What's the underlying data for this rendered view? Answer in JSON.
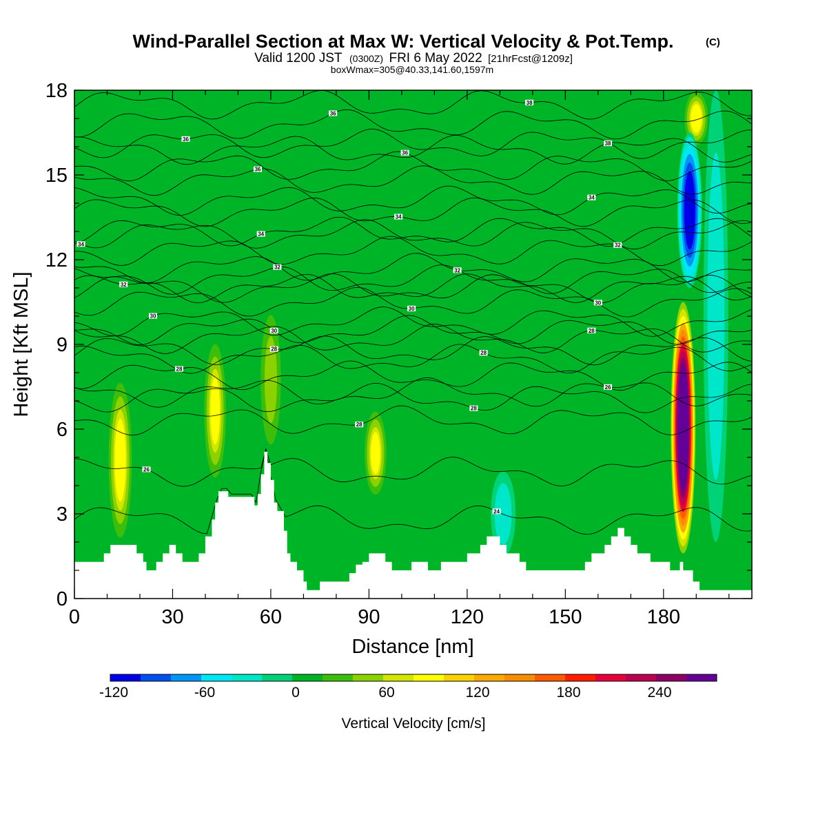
{
  "chart_data": {
    "type": "heatmap",
    "title": "Wind-Parallel Section at Max W: Vertical Velocity & Pot.Temp.",
    "title_mark": "(C)",
    "subtitle_main": "Valid 1200 JST",
    "subtitle_utc": "(0300Z)",
    "subtitle_date": "FRI 6 May 2022",
    "subtitle_fcst": "[21hrFcst@1209z]",
    "subtitle_box": "boxWmax=305@40.33,141.60,1597m",
    "xlabel": "Distance [nm]",
    "ylabel": "Height [Kft MSL]",
    "xlim": [
      0,
      207
    ],
    "ylim": [
      0,
      18
    ],
    "x_ticks": [
      "0",
      "30",
      "60",
      "90",
      "120",
      "150",
      "180"
    ],
    "y_ticks": [
      "0",
      "3",
      "6",
      "9",
      "12",
      "15",
      "18"
    ],
    "colorbar": {
      "label": "Vertical Velocity [cm/s]",
      "tick_labels": [
        "-120",
        "-60",
        "0",
        "60",
        "120",
        "180",
        "240"
      ],
      "colors": [
        "#0000e6",
        "#0050f0",
        "#0096f5",
        "#00e6f5",
        "#00e6c8",
        "#00d278",
        "#00b428",
        "#3cbe0a",
        "#8cd200",
        "#d2e600",
        "#ffff00",
        "#fad200",
        "#faaa00",
        "#fa8c00",
        "#ff5a00",
        "#ff1e00",
        "#e6003c",
        "#be0050",
        "#8c0064",
        "#640096"
      ],
      "levels": [
        -120,
        -100,
        -80,
        -60,
        -40,
        -20,
        0,
        20,
        40,
        60,
        80,
        100,
        120,
        140,
        160,
        180,
        200,
        220,
        240,
        260,
        280
      ]
    },
    "background_w": 0,
    "updraft_features": [
      {
        "x": 14,
        "z_bottom": 2.0,
        "z_top": 7.8,
        "w_max": 90
      },
      {
        "x": 43,
        "z_bottom": 4.0,
        "z_top": 9.3,
        "w_max": 80
      },
      {
        "x": 60,
        "z_bottom": 5.0,
        "z_top": 10.5,
        "w_max": 50
      },
      {
        "x": 92,
        "z_bottom": 3.5,
        "z_top": 6.8,
        "w_max": 80
      },
      {
        "x": 186,
        "z_bottom": 1.6,
        "z_top": 10.5,
        "w_max": 305
      },
      {
        "x": 190,
        "z_bottom": 16.0,
        "z_top": 18.0,
        "w_max": 90
      }
    ],
    "downdraft_features": [
      {
        "x": 188,
        "z_bottom": 11.0,
        "z_top": 16.5,
        "w_min": -120
      },
      {
        "x": 131,
        "z_bottom": 1.5,
        "z_top": 4.5,
        "w_min": -35
      },
      {
        "x": 196,
        "z_bottom": 2.0,
        "z_top": 18.0,
        "w_min": -40
      }
    ],
    "terrain": {
      "x": [
        0,
        7,
        9,
        11,
        17,
        19,
        21,
        22,
        25,
        27,
        29,
        31,
        33,
        36,
        38,
        40,
        42,
        43,
        44,
        47,
        53,
        55,
        56,
        57,
        58,
        59,
        60,
        61,
        62,
        64,
        65,
        66,
        68,
        70,
        71,
        73,
        75,
        77,
        80,
        82,
        84,
        86,
        88,
        90,
        92,
        95,
        97,
        100,
        103,
        106,
        108,
        110,
        112,
        115,
        118,
        120,
        122,
        124,
        126,
        128,
        130,
        132,
        134,
        136,
        138,
        140,
        142,
        145,
        150,
        152,
        154,
        156,
        158,
        160,
        162,
        164,
        166,
        168,
        170,
        172,
        174,
        176,
        178,
        180,
        182,
        184,
        185,
        186,
        188,
        189,
        190,
        191,
        192,
        193,
        195,
        200,
        207
      ],
      "z": [
        1.3,
        1.3,
        1.6,
        1.9,
        1.9,
        1.6,
        1.3,
        1.0,
        1.3,
        1.6,
        1.9,
        1.6,
        1.3,
        1.3,
        1.6,
        2.2,
        2.8,
        3.4,
        3.8,
        3.6,
        3.6,
        3.3,
        3.7,
        4.4,
        5.2,
        4.8,
        4.2,
        3.4,
        3.1,
        2.4,
        1.6,
        1.3,
        1.0,
        0.6,
        0.3,
        0.3,
        0.6,
        0.6,
        0.6,
        0.6,
        0.9,
        1.2,
        1.3,
        1.6,
        1.6,
        1.3,
        1.0,
        1.0,
        1.3,
        1.3,
        1.0,
        1.0,
        1.3,
        1.3,
        1.3,
        1.6,
        1.6,
        1.9,
        2.2,
        2.2,
        1.9,
        1.6,
        1.6,
        1.3,
        1.0,
        1.0,
        1.0,
        1.0,
        1.0,
        1.0,
        1.0,
        1.3,
        1.6,
        1.6,
        1.9,
        2.2,
        2.5,
        2.2,
        1.9,
        1.6,
        1.6,
        1.3,
        1.3,
        1.3,
        1.0,
        1.0,
        1.3,
        1.0,
        1.0,
        0.6,
        0.6,
        0.3,
        0.3,
        0.3,
        0.3,
        0.3,
        0.3
      ]
    },
    "theta_contours": [
      {
        "label": "24",
        "base": 2.8,
        "label_x": 129
      },
      {
        "label": "26",
        "base": 4.5,
        "label_x": 22
      },
      {
        "label": "26",
        "base": 7.3,
        "label_x": 163
      },
      {
        "label": "28",
        "base": 6.3,
        "label_x": 87
      },
      {
        "label": "28",
        "base": 7.1,
        "label_x": 122
      },
      {
        "label": "28",
        "base": 7.9,
        "label_x": 32
      },
      {
        "label": "28",
        "base": 8.8,
        "label_x": 61
      },
      {
        "label": "28",
        "base": 8.5,
        "label_x": 125
      },
      {
        "label": "28",
        "base": 9.2,
        "label_x": 158
      },
      {
        "label": "30",
        "base": 9.5,
        "label_x": 61
      },
      {
        "label": "30",
        "base": 9.8,
        "label_x": 24
      },
      {
        "label": "30",
        "base": 10.5,
        "label_x": 103
      },
      {
        "label": "30",
        "base": 11.0,
        "label_x": 160
      },
      {
        "label": "32",
        "base": 11.0,
        "label_x": 15
      },
      {
        "label": "32",
        "base": 11.3,
        "label_x": 62
      },
      {
        "label": "32",
        "base": 11.7,
        "label_x": 117
      },
      {
        "label": "32",
        "base": 12.3,
        "label_x": 166
      },
      {
        "label": "34",
        "base": 12.9,
        "label_x": 2
      },
      {
        "label": "34",
        "base": 13.0,
        "label_x": 57
      },
      {
        "label": "34",
        "base": 13.7,
        "label_x": 99
      },
      {
        "label": "34",
        "base": 14.1,
        "label_x": 158
      },
      {
        "label": "36",
        "base": 14.8,
        "label_x": 56
      },
      {
        "label": "36",
        "base": 15.3,
        "label_x": 101
      },
      {
        "label": "36",
        "base": 16.1,
        "label_x": 34
      },
      {
        "label": "36",
        "base": 16.8,
        "label_x": 79
      },
      {
        "label": "38",
        "base": 17.5,
        "label_x": 139
      },
      {
        "label": "38",
        "base": 15.9,
        "label_x": 163
      }
    ]
  }
}
